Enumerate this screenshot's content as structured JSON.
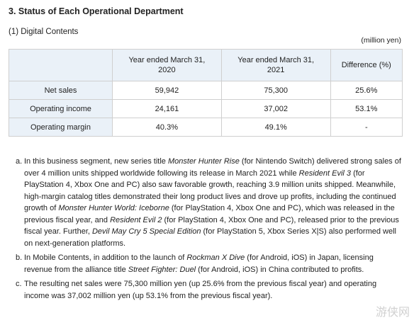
{
  "title": "3. Status of Each Operational Department",
  "subtitle": "(1) Digital Contents",
  "unit": "(million yen)",
  "table": {
    "headers": [
      "Year ended March 31,\n2020",
      "Year ended March 31,\n2021",
      "Difference (%)"
    ],
    "rows": [
      {
        "label": "Net sales",
        "v2020": "59,942",
        "v2021": "75,300",
        "diff": "25.6%"
      },
      {
        "label": "Operating income",
        "v2020": "24,161",
        "v2021": "37,002",
        "diff": "53.1%"
      },
      {
        "label": "Operating margin",
        "v2020": "40.3%",
        "v2021": "49.1%",
        "diff": "-"
      }
    ]
  },
  "notes": {
    "a": {
      "mark": "a.",
      "parts": [
        {
          "t": "In this business segment, new series title "
        },
        {
          "t": "Monster Hunter Rise",
          "i": true
        },
        {
          "t": " (for Nintendo Switch) delivered strong sales of over 4 million units shipped worldwide following its release in March 2021 while "
        },
        {
          "t": "Resident Evil 3",
          "i": true
        },
        {
          "t": " (for PlayStation 4, Xbox One and PC) also saw favorable growth, reaching 3.9 million units shipped. Meanwhile, high-margin catalog titles demonstrated their long product lives and drove up profits, including the continued growth of "
        },
        {
          "t": "Monster Hunter World: Iceborne",
          "i": true
        },
        {
          "t": " (for PlayStation 4, Xbox One and PC), which was released in the previous fiscal year, and "
        },
        {
          "t": "Resident Evil 2",
          "i": true
        },
        {
          "t": " (for PlayStation 4, Xbox One and PC), released prior to the previous fiscal year. Further, "
        },
        {
          "t": "Devil May Cry 5 Special Edition",
          "i": true
        },
        {
          "t": " (for PlayStation 5, Xbox Series X|S) also performed well on next-generation platforms."
        }
      ]
    },
    "b": {
      "mark": "b.",
      "parts": [
        {
          "t": "In Mobile Contents, in addition to the launch of "
        },
        {
          "t": "Rockman X Dive",
          "i": true
        },
        {
          "t": " (for Android, iOS) in Japan, licensing revenue from the alliance title "
        },
        {
          "t": "Street Fighter: Duel",
          "i": true
        },
        {
          "t": " (for Android, iOS) in China contributed to profits."
        }
      ]
    },
    "c": {
      "mark": "c.",
      "parts": [
        {
          "t": "The resulting net sales were 75,300 million yen (up 25.6% from the previous fiscal year) and operating income was 37,002 million yen (up 53.1% from the previous fiscal year)."
        }
      ]
    }
  },
  "watermark": "游侠网"
}
